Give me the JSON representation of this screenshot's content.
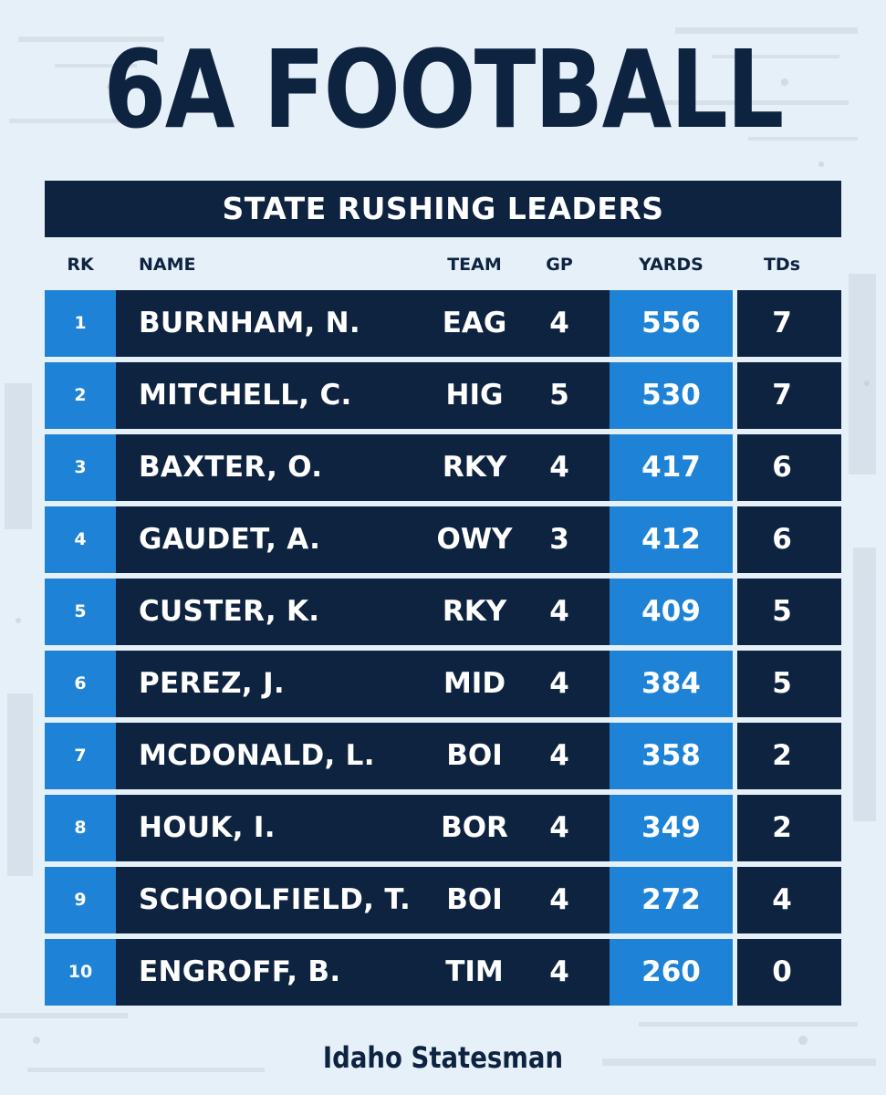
{
  "title": "6A FOOTBALL",
  "subtitle": "STATE RUSHING LEADERS",
  "columns": {
    "rk": "RK",
    "name": "NAME",
    "team": "TEAM",
    "gp": "GP",
    "yards": "YARDS",
    "tds": "TDs"
  },
  "rows": [
    {
      "rk": "1",
      "name": "BURNHAM, N.",
      "team": "EAG",
      "gp": "4",
      "yards": "556",
      "tds": "7"
    },
    {
      "rk": "2",
      "name": "MITCHELL, C.",
      "team": "HIG",
      "gp": "5",
      "yards": "530",
      "tds": "7"
    },
    {
      "rk": "3",
      "name": "BAXTER, O.",
      "team": "RKY",
      "gp": "4",
      "yards": "417",
      "tds": "6"
    },
    {
      "rk": "4",
      "name": "GAUDET, A.",
      "team": "OWY",
      "gp": "3",
      "yards": "412",
      "tds": "6"
    },
    {
      "rk": "5",
      "name": "CUSTER, K.",
      "team": "RKY",
      "gp": "4",
      "yards": "409",
      "tds": "5"
    },
    {
      "rk": "6",
      "name": "PEREZ, J.",
      "team": "MID",
      "gp": "4",
      "yards": "384",
      "tds": "5"
    },
    {
      "rk": "7",
      "name": "MCDONALD, L.",
      "team": "BOI",
      "gp": "4",
      "yards": "358",
      "tds": "2"
    },
    {
      "rk": "8",
      "name": "HOUK, I.",
      "team": "BOR",
      "gp": "4",
      "yards": "349",
      "tds": "2"
    },
    {
      "rk": "9",
      "name": "SCHOOLFIELD, T.",
      "team": "BOI",
      "gp": "4",
      "yards": "272",
      "tds": "4"
    },
    {
      "rk": "10",
      "name": "ENGROFF, B.",
      "team": "TIM",
      "gp": "4",
      "yards": "260",
      "tds": "0"
    }
  ],
  "footer": "Idaho Statesman",
  "colors": {
    "navy": "#0e2340",
    "accent_blue": "#1e83d6",
    "background": "#e6f0f8"
  }
}
